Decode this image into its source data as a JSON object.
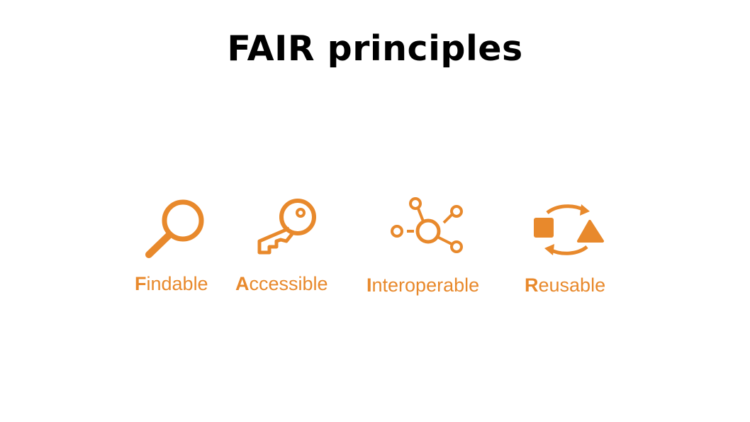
{
  "slide": {
    "title": "FAIR principles"
  },
  "theme": {
    "accent": "#E8892C"
  },
  "principles": [
    {
      "initial": "F",
      "rest": "indable",
      "icon": "magnifier-icon"
    },
    {
      "initial": "A",
      "rest": "ccessible",
      "icon": "key-icon"
    },
    {
      "initial": "I",
      "rest": "nteroperable",
      "icon": "network-nodes-icon"
    },
    {
      "initial": "R",
      "rest": "eusable",
      "icon": "recycle-shapes-icon"
    }
  ]
}
